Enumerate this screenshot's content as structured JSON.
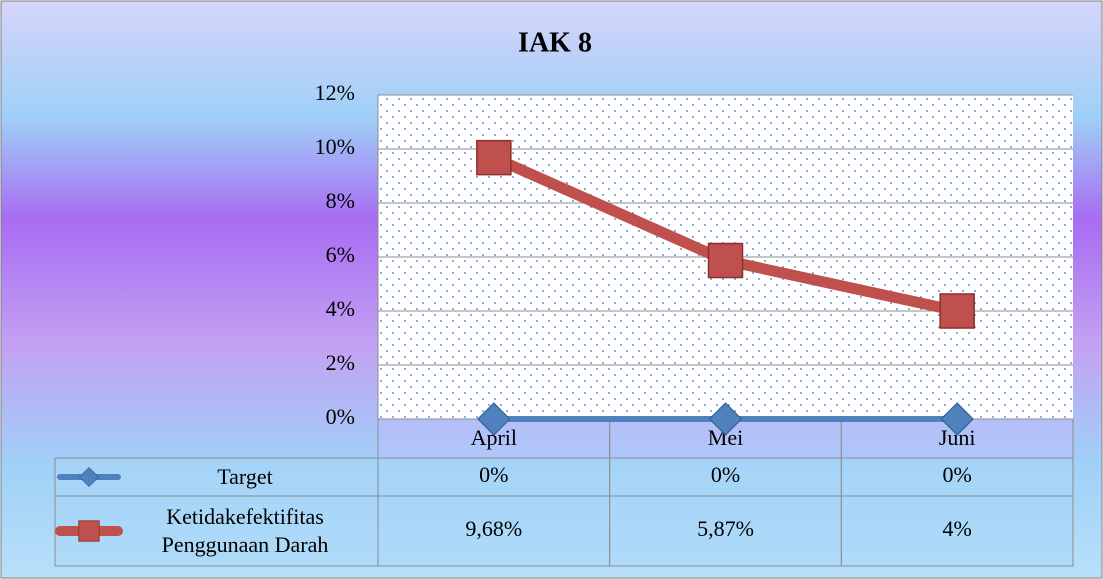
{
  "chart_data": {
    "type": "line",
    "title": "IAK 8",
    "categories": [
      "April",
      "Mei",
      "Juni"
    ],
    "series": [
      {
        "name": "Target",
        "color": "#4f81bd",
        "values": [
          0,
          0,
          0
        ],
        "value_labels": [
          "0%",
          "0%",
          "0%"
        ]
      },
      {
        "name": "Ketidakefektifitas Penggunaan Darah",
        "color": "#c0504d",
        "values": [
          9.68,
          5.87,
          4
        ],
        "value_labels": [
          "9,68%",
          "5,87%",
          "4%"
        ]
      }
    ],
    "ylim": [
      0,
      12
    ],
    "yticks": [
      {
        "value": 0,
        "label": "0%"
      },
      {
        "value": 2,
        "label": "2%"
      },
      {
        "value": 4,
        "label": "4%"
      },
      {
        "value": 6,
        "label": "6%"
      },
      {
        "value": 8,
        "label": "8%"
      },
      {
        "value": 10,
        "label": "10%"
      },
      {
        "value": 12,
        "label": "12%"
      }
    ],
    "grid": true,
    "data_table": true
  }
}
